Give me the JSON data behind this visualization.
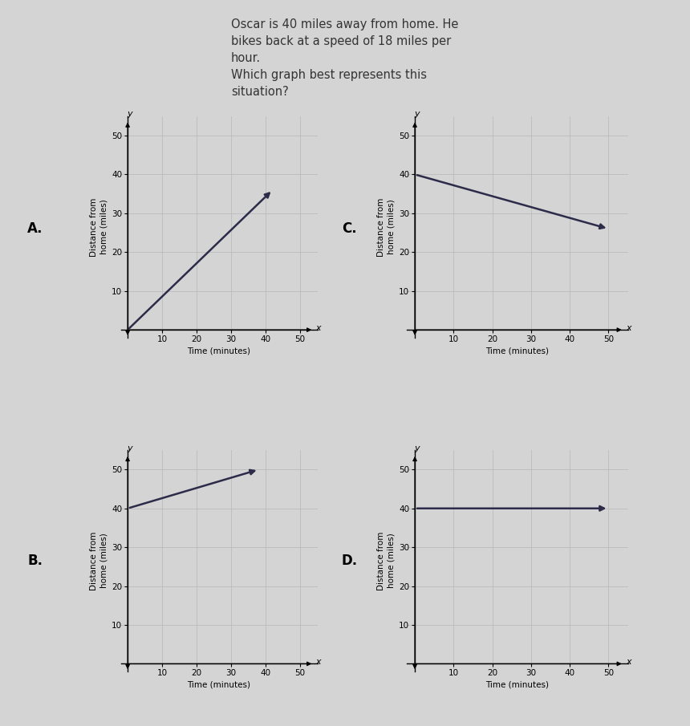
{
  "title_text": "Oscar is 40 miles away from home. He\nbikes back at a speed of 18 miles per\nhour.\nWhich graph best represents this\nsituation?",
  "title_fontsize": 10.5,
  "bg_color": "#d4d4d4",
  "line_color": "#2c2c4a",
  "line_width": 1.8,
  "xlabel": "Time (minutes)",
  "ylabel": "Distance from\nhome (miles)",
  "xticks": [
    10,
    20,
    30,
    40,
    50
  ],
  "yticks": [
    10,
    20,
    30,
    40,
    50
  ],
  "graphs": {
    "A": {
      "x": [
        0,
        42
      ],
      "y": [
        0,
        36
      ]
    },
    "B": {
      "x": [
        0,
        38
      ],
      "y": [
        40,
        50
      ]
    },
    "C": {
      "x": [
        0,
        50
      ],
      "y": [
        40,
        26
      ]
    },
    "D": {
      "x": [
        0,
        50
      ],
      "y": [
        40,
        40
      ]
    }
  },
  "axis_label_fontsize": 7.5,
  "tick_fontsize": 7.5,
  "grid_color": "#bbbbbb",
  "grid_linewidth": 0.6,
  "label_fontsize": 12,
  "ylabel_fontsize": 7.5
}
